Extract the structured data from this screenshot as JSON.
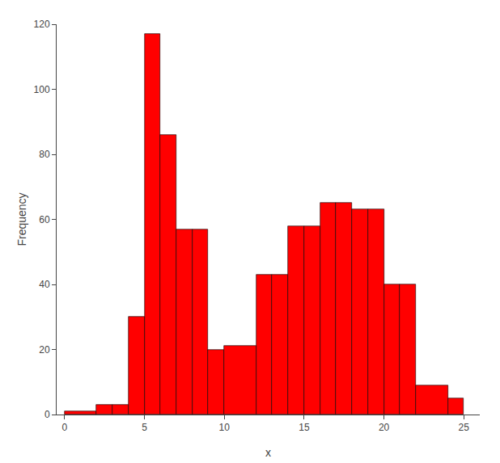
{
  "chart_data": {
    "type": "histogram",
    "bins": [
      0,
      2,
      3,
      4,
      5,
      6,
      7,
      8,
      9,
      10,
      12,
      13,
      14,
      15,
      16,
      17,
      18,
      19,
      20,
      21,
      22,
      24,
      25
    ],
    "values": [
      1,
      3,
      3,
      30,
      117,
      86,
      57,
      57,
      20,
      21,
      43,
      43,
      58,
      58,
      65,
      65,
      63,
      63,
      40,
      40,
      9,
      5
    ],
    "color": "#FF0000",
    "xlabel": "x",
    "ylabel": "Frequency",
    "xlim": [
      -0.5,
      26
    ],
    "ylim": [
      0,
      120
    ],
    "xticks": [
      0,
      5,
      10,
      15,
      20,
      25
    ],
    "yticks": [
      0,
      20,
      40,
      60,
      80,
      100,
      120
    ],
    "grid": false
  }
}
